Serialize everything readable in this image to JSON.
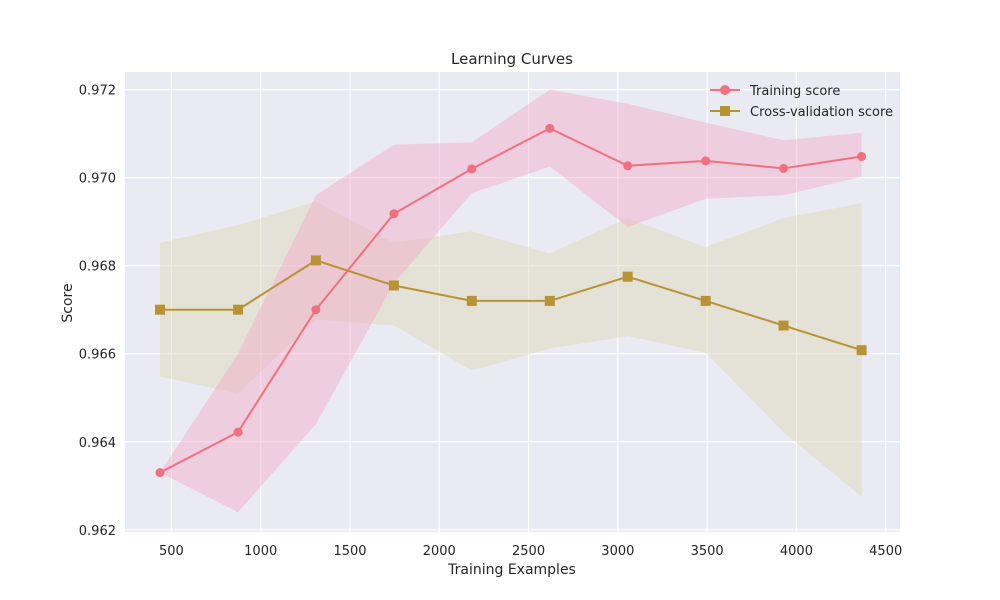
{
  "chart_data": {
    "type": "line",
    "title": "Learning Curves",
    "xlabel": "Training Examples",
    "ylabel": "Score",
    "xlim": [
      240,
      4580
    ],
    "ylim": [
      0.96195,
      0.9724
    ],
    "xticks": [
      500,
      1000,
      1500,
      2000,
      2500,
      3000,
      3500,
      4000,
      4500
    ],
    "xtick_labels": [
      "500",
      "1000",
      "1500",
      "2000",
      "2500",
      "3000",
      "3500",
      "4000",
      "4500"
    ],
    "yticks": [
      0.962,
      0.964,
      0.966,
      0.968,
      0.97,
      0.972
    ],
    "ytick_labels": [
      "0.962",
      "0.964",
      "0.966",
      "0.968",
      "0.970",
      "0.972"
    ],
    "grid": true,
    "legend_position": "top-right",
    "x": [
      436,
      873,
      1309,
      1746,
      2182,
      2619,
      3055,
      3492,
      3928,
      4365
    ],
    "series": [
      {
        "name": "Training score",
        "marker": "circle",
        "color": "#f07080",
        "band_color": "#f4aac8",
        "values": [
          0.9633,
          0.96422,
          0.967,
          0.96918,
          0.9702,
          0.97112,
          0.97027,
          0.97038,
          0.97021,
          0.97048
        ],
        "band_lower": [
          0.9633,
          0.9624,
          0.9644,
          0.9676,
          0.96965,
          0.97025,
          0.96888,
          0.96952,
          0.9696,
          0.97002
        ],
        "band_upper": [
          0.9633,
          0.966,
          0.9696,
          0.97075,
          0.9708,
          0.972,
          0.97168,
          0.97125,
          0.97085,
          0.97102
        ]
      },
      {
        "name": "Cross-validation score",
        "marker": "square",
        "color": "#b89336",
        "band_color": "#ddd6b5",
        "values": [
          0.967,
          0.967,
          0.96812,
          0.96755,
          0.9672,
          0.9672,
          0.96775,
          0.9672,
          0.96664,
          0.96608
        ],
        "band_lower": [
          0.96548,
          0.9651,
          0.96678,
          0.96664,
          0.96562,
          0.96612,
          0.9664,
          0.96602,
          0.96422,
          0.96275
        ],
        "band_upper": [
          0.96852,
          0.96892,
          0.96946,
          0.96852,
          0.96878,
          0.96828,
          0.96908,
          0.96842,
          0.96908,
          0.96942
        ]
      }
    ]
  }
}
